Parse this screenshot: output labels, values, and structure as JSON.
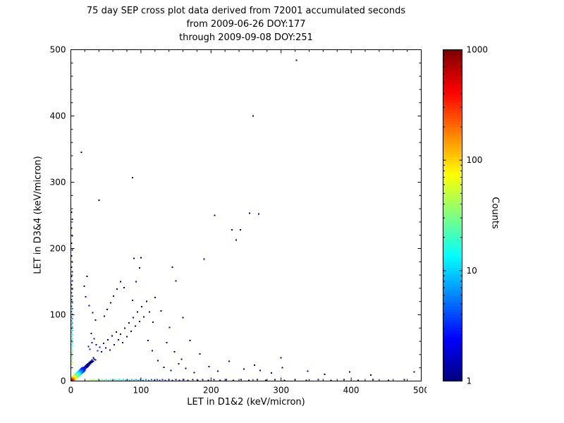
{
  "title": {
    "line1": "75 day SEP cross plot data derived from 72001 accumulated seconds",
    "line2": "from 2009-06-26 DOY:177",
    "line3": "through 2009-09-08 DOY:251"
  },
  "chart_data": {
    "type": "scatter",
    "title": "75 day SEP cross plot data derived from 72001 accumulated seconds from 2009-06-26 DOY:177 through 2009-09-08 DOY:251",
    "xlabel": "LET in D1&2 (keV/micron)",
    "ylabel": "LET in D3&4 (keV/micron)",
    "xlim": [
      0,
      500
    ],
    "ylim": [
      0,
      500
    ],
    "xticks": [
      0,
      100,
      200,
      300,
      400,
      500
    ],
    "yticks": [
      0,
      100,
      200,
      300,
      400,
      500
    ],
    "minor_tick_step": 20,
    "grid": false,
    "colorbar": {
      "label": "Counts",
      "scale": "log",
      "range": [
        1,
        1000
      ],
      "ticks": [
        1,
        10,
        100,
        1000
      ],
      "colormap": "jet",
      "low_color": "#00008f",
      "high_color": "#800000"
    },
    "points_format": [
      "x",
      "y",
      "count"
    ],
    "points": [
      [
        1,
        1,
        1000
      ],
      [
        2,
        1,
        800
      ],
      [
        1,
        2,
        760
      ],
      [
        2,
        2,
        700
      ],
      [
        3,
        1,
        620
      ],
      [
        1,
        3,
        580
      ],
      [
        3,
        2,
        450
      ],
      [
        2,
        3,
        430
      ],
      [
        3,
        3,
        400
      ],
      [
        4,
        1,
        350
      ],
      [
        1,
        4,
        330
      ],
      [
        4,
        2,
        300
      ],
      [
        2,
        4,
        290
      ],
      [
        4,
        3,
        260
      ],
      [
        3,
        4,
        250
      ],
      [
        4,
        4,
        240
      ],
      [
        5,
        2,
        210
      ],
      [
        2,
        5,
        200
      ],
      [
        5,
        3,
        190
      ],
      [
        3,
        5,
        185
      ],
      [
        5,
        4,
        170
      ],
      [
        4,
        5,
        165
      ],
      [
        5,
        5,
        150
      ],
      [
        6,
        2,
        140
      ],
      [
        2,
        6,
        135
      ],
      [
        6,
        4,
        120
      ],
      [
        4,
        6,
        115
      ],
      [
        6,
        6,
        100
      ],
      [
        7,
        3,
        95
      ],
      [
        3,
        7,
        92
      ],
      [
        7,
        5,
        85
      ],
      [
        5,
        7,
        82
      ],
      [
        7,
        7,
        75
      ],
      [
        8,
        4,
        70
      ],
      [
        4,
        8,
        68
      ],
      [
        8,
        6,
        62
      ],
      [
        6,
        8,
        60
      ],
      [
        8,
        8,
        55
      ],
      [
        9,
        5,
        50
      ],
      [
        5,
        9,
        48
      ],
      [
        9,
        7,
        45
      ],
      [
        7,
        9,
        43
      ],
      [
        9,
        9,
        40
      ],
      [
        10,
        6,
        38
      ],
      [
        6,
        10,
        36
      ],
      [
        10,
        8,
        33
      ],
      [
        8,
        10,
        32
      ],
      [
        10,
        10,
        30
      ],
      [
        11,
        7,
        28
      ],
      [
        7,
        11,
        27
      ],
      [
        11,
        9,
        25
      ],
      [
        9,
        11,
        24
      ],
      [
        11,
        11,
        22
      ],
      [
        12,
        8,
        21
      ],
      [
        8,
        12,
        20
      ],
      [
        12,
        10,
        19
      ],
      [
        10,
        12,
        18
      ],
      [
        12,
        12,
        17
      ],
      [
        13,
        9,
        16
      ],
      [
        9,
        13,
        15
      ],
      [
        13,
        11,
        14
      ],
      [
        11,
        13,
        14
      ],
      [
        13,
        13,
        13
      ],
      [
        14,
        10,
        12
      ],
      [
        10,
        14,
        12
      ],
      [
        14,
        12,
        11
      ],
      [
        12,
        14,
        11
      ],
      [
        14,
        14,
        10
      ],
      [
        15,
        11,
        9
      ],
      [
        11,
        15,
        9
      ],
      [
        15,
        13,
        8
      ],
      [
        13,
        15,
        8
      ],
      [
        15,
        15,
        8
      ],
      [
        16,
        12,
        7
      ],
      [
        12,
        16,
        7
      ],
      [
        16,
        14,
        6
      ],
      [
        14,
        16,
        6
      ],
      [
        16,
        16,
        6
      ],
      [
        17,
        13,
        5
      ],
      [
        13,
        17,
        5
      ],
      [
        17,
        15,
        5
      ],
      [
        15,
        17,
        5
      ],
      [
        17,
        17,
        4
      ],
      [
        18,
        14,
        4
      ],
      [
        14,
        18,
        4
      ],
      [
        18,
        16,
        4
      ],
      [
        16,
        18,
        4
      ],
      [
        18,
        18,
        3
      ],
      [
        19,
        15,
        3
      ],
      [
        15,
        19,
        3
      ],
      [
        19,
        17,
        3
      ],
      [
        17,
        19,
        3
      ],
      [
        19,
        19,
        3
      ],
      [
        20,
        16,
        3
      ],
      [
        16,
        20,
        3
      ],
      [
        20,
        18,
        2
      ],
      [
        18,
        20,
        2
      ],
      [
        20,
        20,
        2
      ],
      [
        21,
        19,
        2
      ],
      [
        19,
        21,
        2
      ],
      [
        22,
        20,
        2
      ],
      [
        20,
        22,
        2
      ],
      [
        22,
        22,
        2
      ],
      [
        23,
        21,
        1
      ],
      [
        21,
        23,
        1
      ],
      [
        24,
        22,
        1
      ],
      [
        22,
        24,
        1
      ],
      [
        24,
        24,
        2
      ],
      [
        25,
        23,
        1
      ],
      [
        23,
        25,
        1
      ],
      [
        26,
        24,
        1
      ],
      [
        24,
        26,
        1
      ],
      [
        26,
        26,
        1
      ],
      [
        28,
        26,
        1
      ],
      [
        26,
        28,
        1
      ],
      [
        28,
        28,
        1
      ],
      [
        30,
        28,
        1
      ],
      [
        28,
        30,
        1
      ],
      [
        30,
        30,
        1
      ],
      [
        32,
        30,
        1
      ],
      [
        30,
        32,
        1
      ],
      [
        33,
        33,
        1
      ],
      [
        35,
        32,
        1
      ],
      [
        32,
        35,
        1
      ],
      [
        25,
        1,
        60
      ],
      [
        28,
        2,
        50
      ],
      [
        30,
        1,
        45
      ],
      [
        33,
        2,
        40
      ],
      [
        36,
        1,
        36
      ],
      [
        39,
        2,
        33
      ],
      [
        42,
        1,
        30
      ],
      [
        45,
        2,
        27
      ],
      [
        48,
        1,
        25
      ],
      [
        51,
        2,
        23
      ],
      [
        54,
        1,
        21
      ],
      [
        57,
        2,
        19
      ],
      [
        60,
        1,
        18
      ],
      [
        63,
        2,
        16
      ],
      [
        66,
        1,
        15
      ],
      [
        69,
        2,
        14
      ],
      [
        72,
        1,
        13
      ],
      [
        75,
        2,
        12
      ],
      [
        78,
        1,
        11
      ],
      [
        81,
        2,
        10
      ],
      [
        84,
        1,
        9
      ],
      [
        87,
        2,
        9
      ],
      [
        90,
        1,
        8
      ],
      [
        93,
        2,
        8
      ],
      [
        96,
        1,
        7
      ],
      [
        99,
        2,
        7
      ],
      [
        103,
        1,
        6
      ],
      [
        107,
        2,
        6
      ],
      [
        111,
        1,
        5
      ],
      [
        115,
        2,
        5
      ],
      [
        119,
        1,
        4
      ],
      [
        123,
        2,
        4
      ],
      [
        127,
        1,
        4
      ],
      [
        131,
        2,
        3
      ],
      [
        135,
        1,
        3
      ],
      [
        140,
        2,
        3
      ],
      [
        145,
        1,
        2
      ],
      [
        150,
        2,
        2
      ],
      [
        155,
        1,
        2
      ],
      [
        161,
        2,
        2
      ],
      [
        167,
        1,
        1
      ],
      [
        174,
        2,
        1
      ],
      [
        181,
        1,
        1
      ],
      [
        188,
        2,
        1
      ],
      [
        196,
        1,
        1
      ],
      [
        204,
        2,
        1
      ],
      [
        213,
        1,
        1
      ],
      [
        222,
        2,
        1
      ],
      [
        232,
        1,
        1
      ],
      [
        243,
        2,
        1
      ],
      [
        254,
        1,
        1
      ],
      [
        266,
        2,
        1
      ],
      [
        278,
        1,
        1
      ],
      [
        291,
        2,
        1
      ],
      [
        305,
        1,
        1
      ],
      [
        320,
        2,
        1
      ],
      [
        336,
        1,
        1
      ],
      [
        353,
        2,
        1
      ],
      [
        371,
        1,
        1
      ],
      [
        390,
        2,
        1
      ],
      [
        410,
        1,
        1
      ],
      [
        431,
        2,
        1
      ],
      [
        453,
        1,
        1
      ],
      [
        476,
        2,
        1
      ],
      [
        490,
        14,
        1
      ],
      [
        1,
        25,
        55
      ],
      [
        2,
        28,
        46
      ],
      [
        1,
        31,
        40
      ],
      [
        2,
        34,
        36
      ],
      [
        1,
        37,
        32
      ],
      [
        2,
        40,
        29
      ],
      [
        1,
        43,
        26
      ],
      [
        2,
        46,
        24
      ],
      [
        1,
        49,
        22
      ],
      [
        2,
        52,
        20
      ],
      [
        1,
        55,
        18
      ],
      [
        2,
        58,
        17
      ],
      [
        1,
        61,
        15
      ],
      [
        2,
        64,
        14
      ],
      [
        1,
        67,
        13
      ],
      [
        2,
        70,
        12
      ],
      [
        1,
        73,
        11
      ],
      [
        2,
        76,
        10
      ],
      [
        1,
        79,
        9
      ],
      [
        2,
        82,
        9
      ],
      [
        1,
        85,
        8
      ],
      [
        2,
        88,
        7
      ],
      [
        1,
        91,
        7
      ],
      [
        2,
        94,
        6
      ],
      [
        1,
        97,
        6
      ],
      [
        2,
        101,
        5
      ],
      [
        1,
        105,
        5
      ],
      [
        2,
        109,
        4
      ],
      [
        1,
        113,
        4
      ],
      [
        2,
        118,
        4
      ],
      [
        1,
        123,
        3
      ],
      [
        2,
        128,
        3
      ],
      [
        1,
        133,
        3
      ],
      [
        2,
        139,
        2
      ],
      [
        1,
        145,
        2
      ],
      [
        2,
        151,
        2
      ],
      [
        1,
        158,
        2
      ],
      [
        2,
        165,
        1
      ],
      [
        1,
        172,
        1
      ],
      [
        2,
        180,
        1
      ],
      [
        1,
        189,
        1
      ],
      [
        2,
        198,
        1
      ],
      [
        1,
        208,
        1
      ],
      [
        2,
        219,
        1
      ],
      [
        1,
        231,
        1
      ],
      [
        2,
        244,
        1
      ],
      [
        1,
        255,
        1
      ],
      [
        15,
        345,
        1
      ],
      [
        27,
        48,
        3
      ],
      [
        25,
        52,
        2
      ],
      [
        30,
        58,
        2
      ],
      [
        33,
        64,
        2
      ],
      [
        29,
        72,
        1
      ],
      [
        36,
        55,
        2
      ],
      [
        38,
        46,
        3
      ],
      [
        41,
        51,
        2
      ],
      [
        44,
        44,
        2
      ],
      [
        47,
        57,
        2
      ],
      [
        50,
        50,
        2
      ],
      [
        53,
        62,
        1
      ],
      [
        56,
        47,
        2
      ],
      [
        59,
        68,
        1
      ],
      [
        62,
        55,
        1
      ],
      [
        65,
        74,
        1
      ],
      [
        68,
        62,
        1
      ],
      [
        71,
        71,
        2
      ],
      [
        74,
        58,
        1
      ],
      [
        77,
        80,
        1
      ],
      [
        80,
        67,
        1
      ],
      [
        83,
        88,
        1
      ],
      [
        86,
        75,
        1
      ],
      [
        89,
        96,
        1
      ],
      [
        92,
        83,
        1
      ],
      [
        95,
        104,
        1
      ],
      [
        98,
        90,
        1
      ],
      [
        101,
        112,
        1
      ],
      [
        104,
        97,
        1
      ],
      [
        108,
        120,
        1
      ],
      [
        112,
        104,
        1
      ],
      [
        117,
        89,
        1
      ],
      [
        35,
        92,
        1
      ],
      [
        31,
        103,
        1
      ],
      [
        26,
        114,
        1
      ],
      [
        21,
        127,
        2
      ],
      [
        19,
        143,
        1
      ],
      [
        23,
        158,
        1
      ],
      [
        48,
        98,
        1
      ],
      [
        52,
        108,
        1
      ],
      [
        57,
        118,
        1
      ],
      [
        61,
        128,
        1
      ],
      [
        66,
        139,
        1
      ],
      [
        71,
        150,
        1
      ],
      [
        76,
        141,
        1
      ],
      [
        88,
        122,
        1
      ],
      [
        93,
        150,
        1
      ],
      [
        98,
        171,
        1
      ],
      [
        90,
        185,
        1
      ],
      [
        100,
        186,
        1
      ],
      [
        88,
        307,
        1
      ],
      [
        40,
        273,
        1
      ],
      [
        145,
        172,
        1
      ],
      [
        150,
        151,
        1
      ],
      [
        160,
        96,
        1
      ],
      [
        170,
        61,
        1
      ],
      [
        184,
        41,
        1
      ],
      [
        190,
        184,
        1
      ],
      [
        205,
        250,
        1
      ],
      [
        255,
        253,
        1
      ],
      [
        268,
        252,
        1
      ],
      [
        230,
        228,
        1
      ],
      [
        242,
        228,
        1
      ],
      [
        236,
        213,
        1
      ],
      [
        260,
        400,
        1
      ],
      [
        322,
        484,
        1
      ],
      [
        120,
        126,
        1
      ],
      [
        129,
        106,
        1
      ],
      [
        141,
        81,
        1
      ],
      [
        110,
        61,
        1
      ],
      [
        116,
        46,
        1
      ],
      [
        124,
        31,
        1
      ],
      [
        133,
        21,
        1
      ],
      [
        143,
        16,
        1
      ],
      [
        154,
        26,
        1
      ],
      [
        164,
        19,
        1
      ],
      [
        176,
        13,
        1
      ],
      [
        137,
        58,
        1
      ],
      [
        148,
        44,
        1
      ],
      [
        158,
        33,
        1
      ],
      [
        197,
        22,
        1
      ],
      [
        210,
        15,
        1
      ],
      [
        226,
        30,
        1
      ],
      [
        247,
        18,
        1
      ],
      [
        262,
        24,
        1
      ],
      [
        286,
        12,
        1
      ],
      [
        302,
        20,
        1
      ],
      [
        338,
        15,
        1
      ],
      [
        362,
        10,
        1
      ],
      [
        398,
        14,
        1
      ],
      [
        428,
        9,
        1
      ],
      [
        300,
        35,
        1
      ],
      [
        270,
        16,
        1
      ]
    ]
  }
}
